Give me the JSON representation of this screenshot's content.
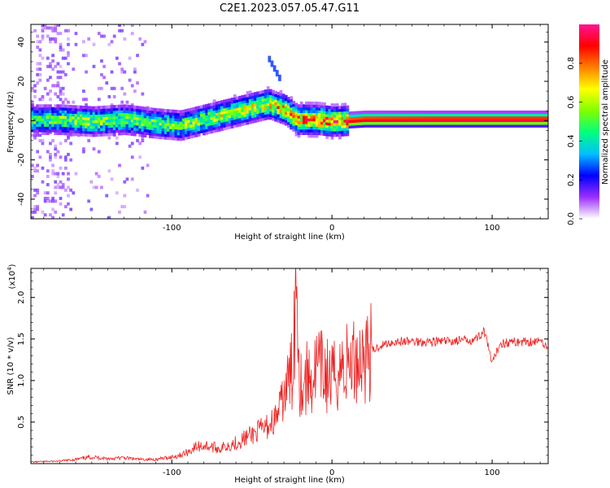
{
  "title": "C2E1.2023.057.05.47.G11",
  "chart_data": [
    {
      "type": "heatmap",
      "xlabel": "Height of straight line (km)",
      "ylabel": "Frequency (Hz)",
      "xlim": [
        -188,
        135
      ],
      "ylim": [
        -50,
        49
      ],
      "xticks": [
        -100,
        0,
        100
      ],
      "yticks": [
        -40,
        -20,
        0,
        20,
        40
      ],
      "colorbar": {
        "label": "Normalized spectral amplitude",
        "range": [
          0.0,
          1.0
        ],
        "ticks": [
          0.0,
          0.2,
          0.4,
          0.6,
          0.8
        ],
        "colors": [
          "#ffffff",
          "#9b30ff",
          "#0000ff",
          "#00bfff",
          "#00ff80",
          "#80ff00",
          "#ffff00",
          "#ff8000",
          "#ff0000",
          "#ff1493"
        ]
      },
      "ridge": [
        {
          "x": -188,
          "y": 0,
          "amp": 0.55
        },
        {
          "x": -170,
          "y": 0,
          "amp": 0.6
        },
        {
          "x": -150,
          "y": -1,
          "amp": 0.65
        },
        {
          "x": -130,
          "y": 0,
          "amp": 0.6
        },
        {
          "x": -110,
          "y": -2,
          "amp": 0.6
        },
        {
          "x": -95,
          "y": -3,
          "amp": 0.6
        },
        {
          "x": -80,
          "y": 0,
          "amp": 0.65
        },
        {
          "x": -65,
          "y": 3,
          "amp": 0.7
        },
        {
          "x": -50,
          "y": 6,
          "amp": 0.7
        },
        {
          "x": -40,
          "y": 8,
          "amp": 0.75
        },
        {
          "x": -30,
          "y": 5,
          "amp": 0.8
        },
        {
          "x": -22,
          "y": 0,
          "amp": 0.85
        },
        {
          "x": -10,
          "y": 0,
          "amp": 0.88
        },
        {
          "x": 0,
          "y": -1,
          "amp": 0.9
        },
        {
          "x": 20,
          "y": 0,
          "amp": 0.95
        },
        {
          "x": 60,
          "y": 0,
          "amp": 0.97
        },
        {
          "x": 100,
          "y": 0,
          "amp": 0.97
        },
        {
          "x": 135,
          "y": 0,
          "amp": 0.97
        }
      ]
    },
    {
      "type": "line",
      "xlabel": "Height of straight line (km)",
      "ylabel": "SNR (10 * v/v)",
      "yscale_label": "(x10",
      "yscale_exp": "4",
      "xlim": [
        -188,
        135
      ],
      "ylim": [
        0,
        2.35
      ],
      "xticks": [
        -100,
        0,
        100
      ],
      "yticks": [
        0.5,
        1.0,
        1.5,
        2.0
      ],
      "line_color": "#ee2222",
      "series": [
        {
          "x": [
            -188,
            -170,
            -160,
            -150,
            -140,
            -130,
            -120,
            -110,
            -100,
            -95,
            -90,
            -85,
            -80,
            -75,
            -70,
            -65,
            -60,
            -55,
            -50,
            -45,
            -40,
            -35,
            -30,
            -27,
            -25,
            -22,
            -20,
            -18,
            -15,
            -12,
            -10,
            -5,
            0,
            5,
            10,
            15,
            20,
            25,
            30,
            35,
            40,
            50,
            60,
            70,
            80,
            90,
            95,
            100,
            105,
            110,
            120,
            130,
            135
          ],
          "y": [
            0.02,
            0.03,
            0.05,
            0.08,
            0.06,
            0.07,
            0.05,
            0.05,
            0.08,
            0.1,
            0.14,
            0.2,
            0.22,
            0.2,
            0.18,
            0.22,
            0.25,
            0.3,
            0.35,
            0.4,
            0.45,
            0.55,
            0.8,
            1.0,
            1.1,
            2.35,
            1.0,
            0.95,
            1.05,
            1.0,
            1.15,
            1.1,
            1.0,
            1.15,
            1.2,
            1.25,
            1.3,
            1.35,
            1.42,
            1.45,
            1.47,
            1.47,
            1.47,
            1.47,
            1.48,
            1.5,
            1.6,
            1.2,
            1.45,
            1.46,
            1.47,
            1.47,
            1.42
          ]
        }
      ]
    }
  ]
}
